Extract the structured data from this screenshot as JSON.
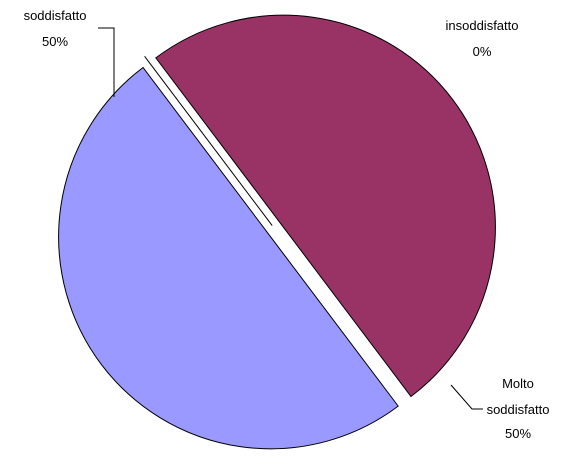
{
  "chart_data": {
    "type": "pie",
    "title": "",
    "slices": [
      {
        "label_lines": [
          "Molto",
          "soddisfatto"
        ],
        "percent_label": "50%",
        "value": 50,
        "color": "#9999ff"
      },
      {
        "label_lines": [
          "insoddisfatto"
        ],
        "percent_label": "0%",
        "value": 0,
        "color": "#ffffcc"
      },
      {
        "label_lines": [
          "soddisfatto"
        ],
        "percent_label": "50%",
        "value": 50,
        "color": "#993366"
      }
    ],
    "legend": "none"
  }
}
